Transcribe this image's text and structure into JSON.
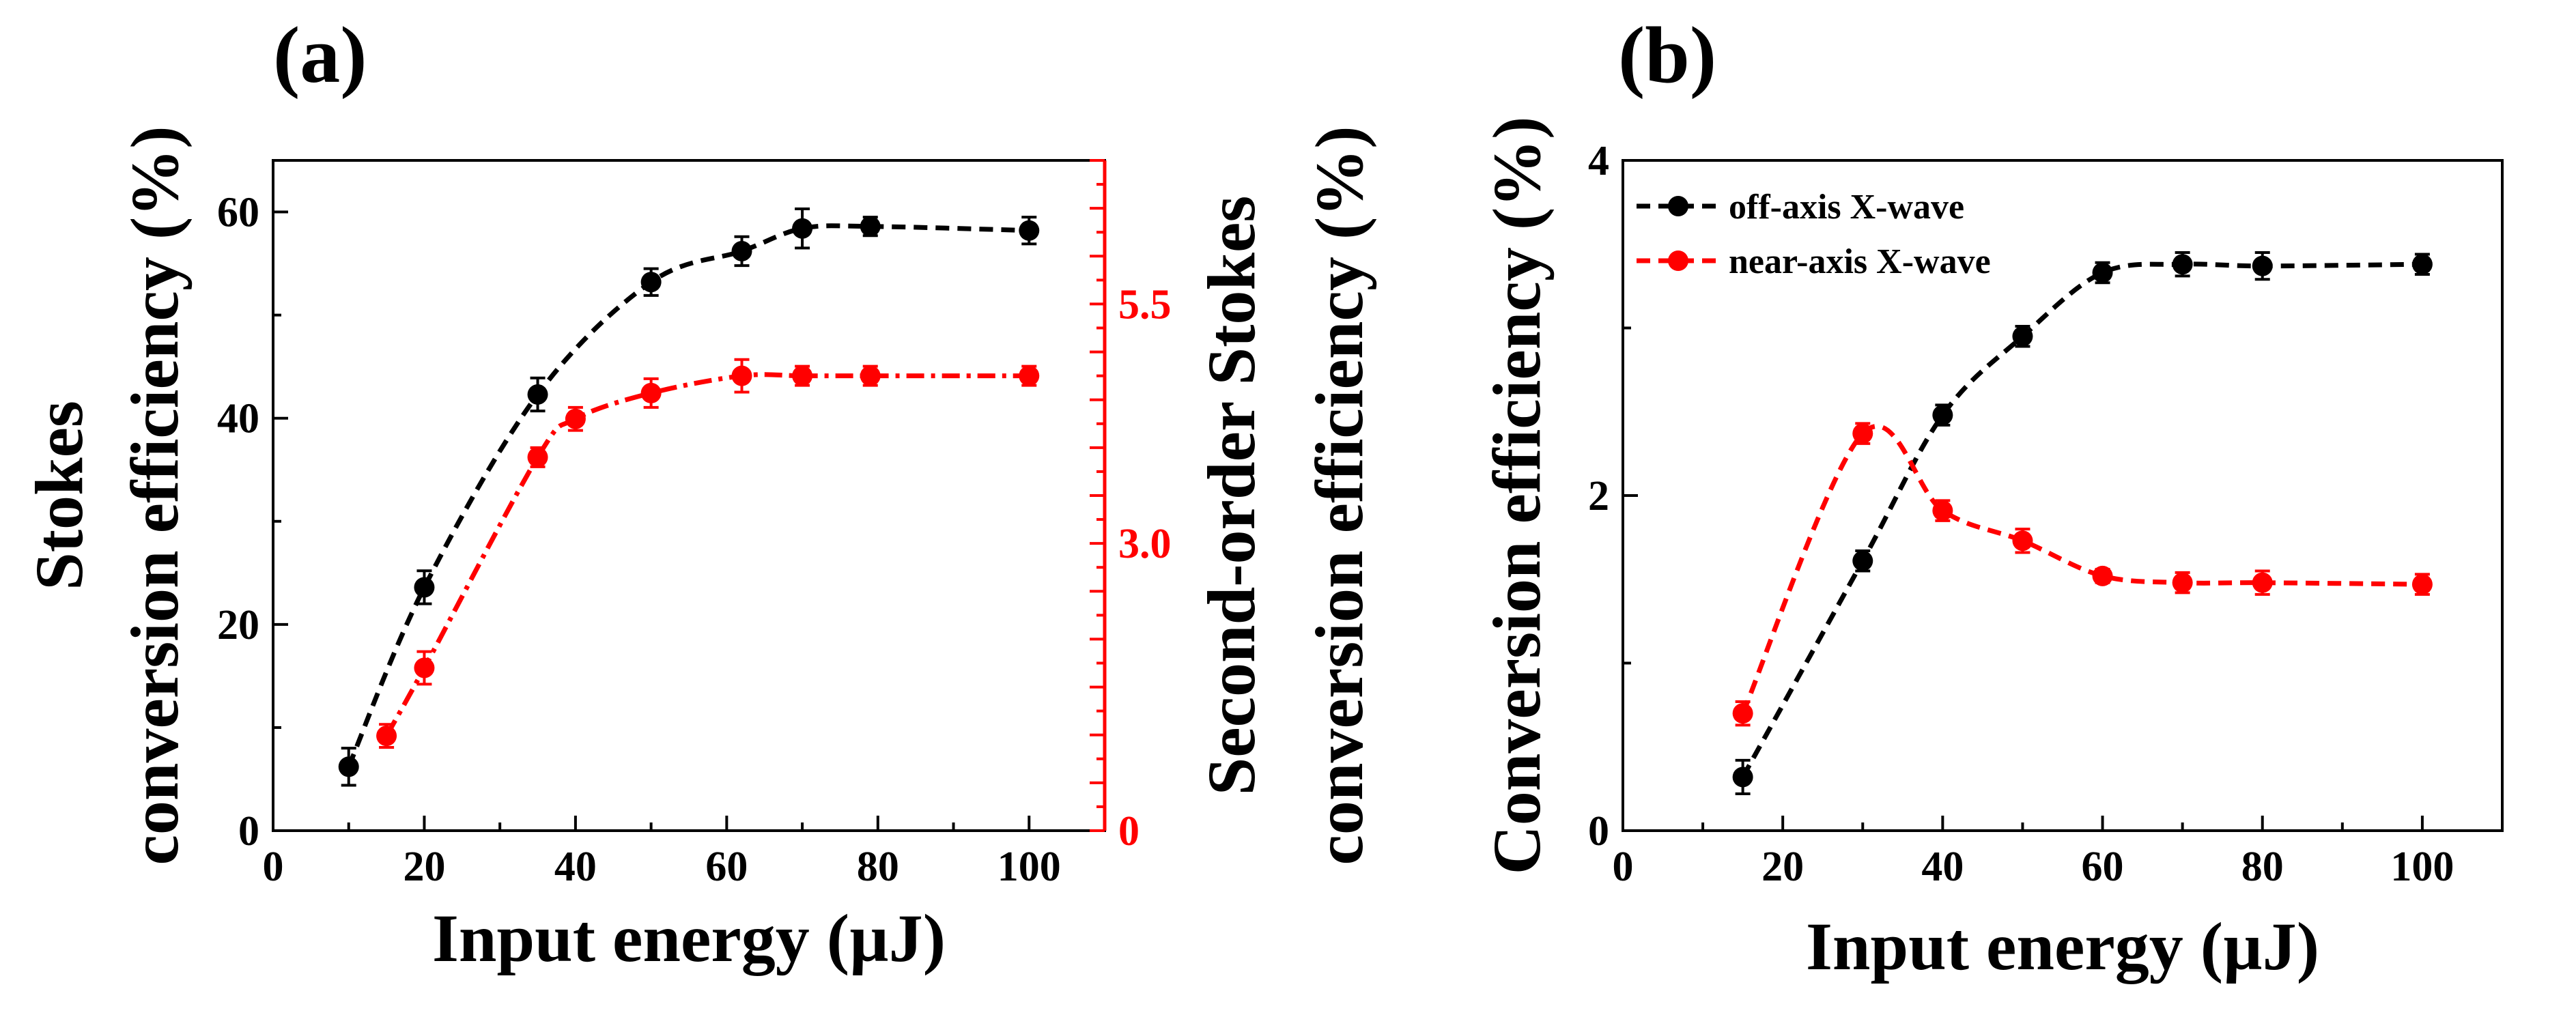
{
  "chart_data": [
    {
      "type": "scatter",
      "panel_label": "(a)",
      "xlabel": "Input energy (µJ)",
      "ylabel_lines": [
        "Stokes",
        "conversion efficiency (%)"
      ],
      "ylabel_right_lines": [
        "Second-order Stokes",
        "conversion efficiency (%)"
      ],
      "xlim": [
        0,
        110
      ],
      "ylim": [
        0,
        65
      ],
      "ylim_right": [
        0,
        7.0
      ],
      "xticks": [
        0,
        20,
        40,
        60,
        80,
        100
      ],
      "xtick_labels": [
        "0",
        "20",
        "40",
        "60",
        "80",
        "100"
      ],
      "yticks": [
        0,
        20,
        40,
        60
      ],
      "ytick_labels": [
        "0",
        "20",
        "40",
        "60"
      ],
      "yticks_right": [
        0,
        3.0,
        5.5
      ],
      "ytick_right_labels": [
        "0",
        "3.0",
        "5.5"
      ],
      "right_axis_color": "#ff0000",
      "series": [
        {
          "name": "Stokes",
          "color": "#000000",
          "axis": "left",
          "line_style": "dash",
          "x": [
            10,
            20,
            35,
            50,
            62,
            70,
            79,
            100
          ],
          "y": [
            6.2,
            23.6,
            42.3,
            53.2,
            56.2,
            58.4,
            58.6,
            58.2
          ],
          "err": [
            1.8,
            1.6,
            1.6,
            1.3,
            1.4,
            1.9,
            0.9,
            1.3
          ]
        },
        {
          "name": "Second-order Stokes",
          "color": "#ff0000",
          "axis": "right",
          "line_style": "dashdot",
          "x": [
            15,
            20,
            35,
            40,
            50,
            62,
            70,
            79,
            100
          ],
          "y": [
            0.99,
            1.7,
            3.9,
            4.3,
            4.57,
            4.75,
            4.75,
            4.75,
            4.75
          ],
          "err": [
            0.12,
            0.17,
            0.1,
            0.12,
            0.15,
            0.17,
            0.1,
            0.1,
            0.1
          ]
        }
      ]
    },
    {
      "type": "scatter",
      "panel_label": "(b)",
      "xlabel": "Input energy (µJ)",
      "ylabel": "Conversion efficiency (%)",
      "xlim": [
        0,
        110
      ],
      "ylim": [
        0,
        4
      ],
      "xticks": [
        0,
        20,
        40,
        60,
        80,
        100
      ],
      "xtick_labels": [
        "0",
        "20",
        "40",
        "60",
        "80",
        "100"
      ],
      "yticks": [
        0,
        2,
        4
      ],
      "ytick_labels": [
        "0",
        "2",
        "4"
      ],
      "legend_position": "top-left",
      "series": [
        {
          "name": "off-axis X-wave",
          "color": "#000000",
          "line_style": "dash",
          "x": [
            15,
            30,
            40,
            50,
            60,
            70,
            80,
            100
          ],
          "y": [
            0.32,
            1.61,
            2.48,
            2.95,
            3.33,
            3.38,
            3.37,
            3.38
          ],
          "err": [
            0.1,
            0.06,
            0.06,
            0.06,
            0.06,
            0.07,
            0.08,
            0.06
          ]
        },
        {
          "name": "near-axis X-wave",
          "color": "#ff0000",
          "line_style": "dash",
          "x": [
            15,
            30,
            40,
            50,
            60,
            70,
            80,
            100
          ],
          "y": [
            0.7,
            2.37,
            1.91,
            1.73,
            1.52,
            1.48,
            1.48,
            1.47
          ],
          "err": [
            0.07,
            0.06,
            0.06,
            0.07,
            0.04,
            0.06,
            0.07,
            0.06
          ]
        }
      ]
    }
  ]
}
